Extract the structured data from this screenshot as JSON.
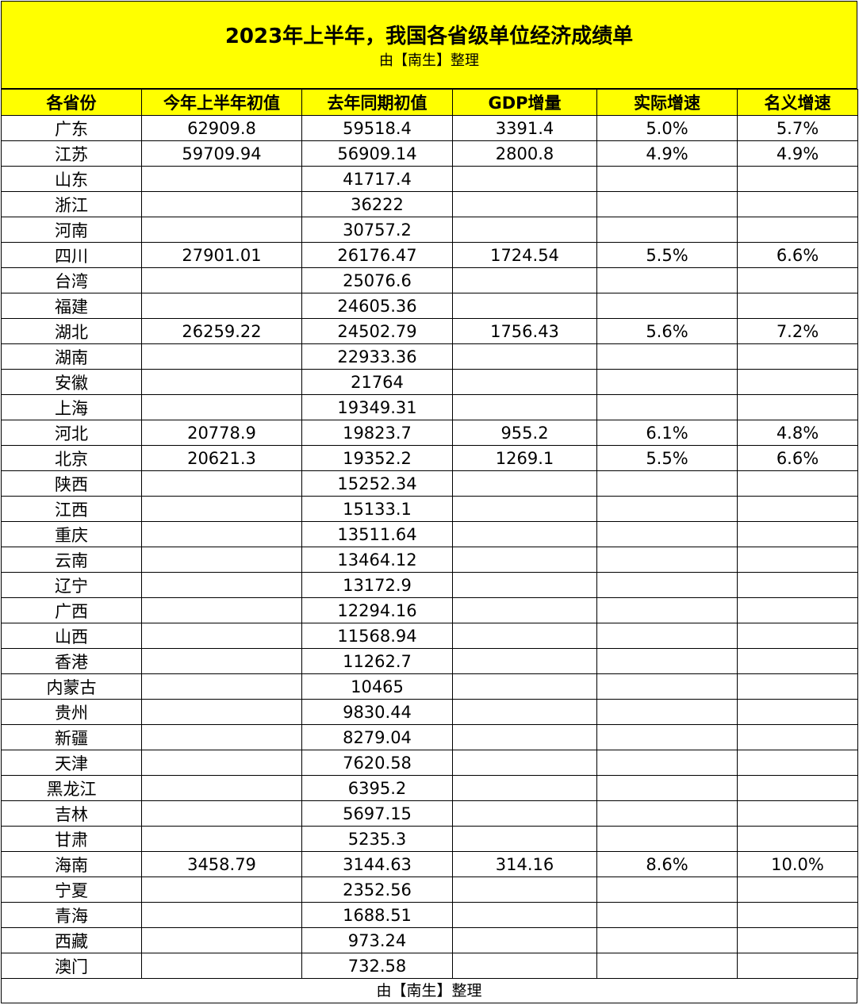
{
  "title": "2023年上半年，我国各省级单位经济成绩单",
  "subtitle": "由【南生】整理",
  "footer": "由【南生】整理",
  "colors": {
    "header_bg": "#ffff00",
    "border": "#000000"
  },
  "headers": [
    "各省份",
    "今年上半年初值",
    "去年同期初值",
    "GDP增量",
    "实际增速",
    "名义增速"
  ],
  "rows": [
    [
      "广东",
      "62909.8",
      "59518.4",
      "3391.4",
      "5.0%",
      "5.7%"
    ],
    [
      "江苏",
      "59709.94",
      "56909.14",
      "2800.8",
      "4.9%",
      "4.9%"
    ],
    [
      "山东",
      "",
      "41717.4",
      "",
      "",
      ""
    ],
    [
      "浙江",
      "",
      "36222",
      "",
      "",
      ""
    ],
    [
      "河南",
      "",
      "30757.2",
      "",
      "",
      ""
    ],
    [
      "四川",
      "27901.01",
      "26176.47",
      "1724.54",
      "5.5%",
      "6.6%"
    ],
    [
      "台湾",
      "",
      "25076.6",
      "",
      "",
      ""
    ],
    [
      "福建",
      "",
      "24605.36",
      "",
      "",
      ""
    ],
    [
      "湖北",
      "26259.22",
      "24502.79",
      "1756.43",
      "5.6%",
      "7.2%"
    ],
    [
      "湖南",
      "",
      "22933.36",
      "",
      "",
      ""
    ],
    [
      "安徽",
      "",
      "21764",
      "",
      "",
      ""
    ],
    [
      "上海",
      "",
      "19349.31",
      "",
      "",
      ""
    ],
    [
      "河北",
      "20778.9",
      "19823.7",
      "955.2",
      "6.1%",
      "4.8%"
    ],
    [
      "北京",
      "20621.3",
      "19352.2",
      "1269.1",
      "5.5%",
      "6.6%"
    ],
    [
      "陕西",
      "",
      "15252.34",
      "",
      "",
      ""
    ],
    [
      "江西",
      "",
      "15133.1",
      "",
      "",
      ""
    ],
    [
      "重庆",
      "",
      "13511.64",
      "",
      "",
      ""
    ],
    [
      "云南",
      "",
      "13464.12",
      "",
      "",
      ""
    ],
    [
      "辽宁",
      "",
      "13172.9",
      "",
      "",
      ""
    ],
    [
      "广西",
      "",
      "12294.16",
      "",
      "",
      ""
    ],
    [
      "山西",
      "",
      "11568.94",
      "",
      "",
      ""
    ],
    [
      "香港",
      "",
      "11262.7",
      "",
      "",
      ""
    ],
    [
      "内蒙古",
      "",
      "10465",
      "",
      "",
      ""
    ],
    [
      "贵州",
      "",
      "9830.44",
      "",
      "",
      ""
    ],
    [
      "新疆",
      "",
      "8279.04",
      "",
      "",
      ""
    ],
    [
      "天津",
      "",
      "7620.58",
      "",
      "",
      ""
    ],
    [
      "黑龙江",
      "",
      "6395.2",
      "",
      "",
      ""
    ],
    [
      "吉林",
      "",
      "5697.15",
      "",
      "",
      ""
    ],
    [
      "甘肃",
      "",
      "5235.3",
      "",
      "",
      ""
    ],
    [
      "海南",
      "3458.79",
      "3144.63",
      "314.16",
      "8.6%",
      "10.0%"
    ],
    [
      "宁夏",
      "",
      "2352.56",
      "",
      "",
      ""
    ],
    [
      "青海",
      "",
      "1688.51",
      "",
      "",
      ""
    ],
    [
      "西藏",
      "",
      "973.24",
      "",
      "",
      ""
    ],
    [
      "澳门",
      "",
      "732.58",
      "",
      "",
      ""
    ]
  ]
}
